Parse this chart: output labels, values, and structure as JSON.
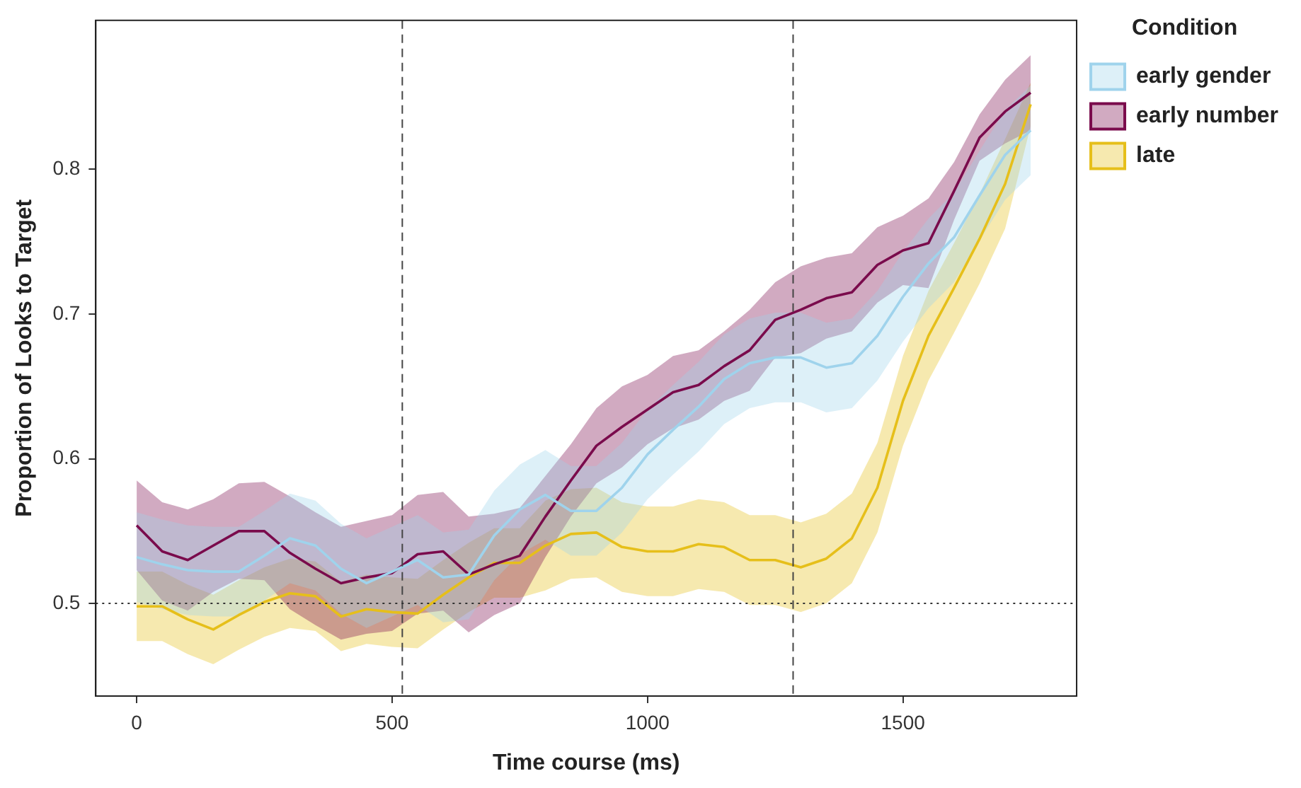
{
  "chart_data": {
    "type": "line",
    "xlabel": "Time course (ms)",
    "ylabel": "Proportion of Looks to Target",
    "legend_title": "Condition",
    "x": [
      0,
      50,
      100,
      150,
      200,
      250,
      300,
      350,
      400,
      450,
      500,
      550,
      600,
      650,
      700,
      750,
      800,
      850,
      900,
      950,
      1000,
      1050,
      1100,
      1150,
      1200,
      1250,
      1300,
      1350,
      1400,
      1450,
      1500,
      1550,
      1600,
      1650,
      1700,
      1750
    ],
    "series": [
      {
        "name": "early gender",
        "color": "#9fd3ec",
        "values": [
          0.532,
          0.527,
          0.523,
          0.522,
          0.522,
          0.533,
          0.545,
          0.54,
          0.524,
          0.514,
          0.522,
          0.53,
          0.518,
          0.52,
          0.547,
          0.565,
          0.575,
          0.564,
          0.564,
          0.58,
          0.603,
          0.62,
          0.636,
          0.655,
          0.666,
          0.67,
          0.67,
          0.663,
          0.666,
          0.685,
          0.712,
          0.735,
          0.753,
          0.782,
          0.81,
          0.827
        ],
        "upper": [
          0.563,
          0.558,
          0.554,
          0.553,
          0.553,
          0.564,
          0.576,
          0.571,
          0.555,
          0.545,
          0.553,
          0.561,
          0.549,
          0.551,
          0.578,
          0.596,
          0.606,
          0.595,
          0.595,
          0.611,
          0.634,
          0.651,
          0.667,
          0.686,
          0.697,
          0.701,
          0.701,
          0.694,
          0.697,
          0.716,
          0.743,
          0.766,
          0.784,
          0.813,
          0.841,
          0.858
        ],
        "lower": [
          0.501,
          0.496,
          0.492,
          0.491,
          0.491,
          0.502,
          0.514,
          0.509,
          0.493,
          0.483,
          0.491,
          0.499,
          0.487,
          0.489,
          0.516,
          0.534,
          0.544,
          0.533,
          0.533,
          0.549,
          0.572,
          0.589,
          0.605,
          0.624,
          0.635,
          0.639,
          0.639,
          0.632,
          0.635,
          0.654,
          0.681,
          0.704,
          0.722,
          0.751,
          0.779,
          0.796
        ]
      },
      {
        "name": "early number",
        "color": "#7a0b4c",
        "values": [
          0.554,
          0.536,
          0.53,
          0.54,
          0.55,
          0.55,
          0.535,
          0.524,
          0.514,
          0.518,
          0.521,
          0.534,
          0.536,
          0.52,
          0.527,
          0.533,
          0.56,
          0.585,
          0.609,
          0.622,
          0.634,
          0.646,
          0.651,
          0.664,
          0.675,
          0.696,
          0.703,
          0.711,
          0.715,
          0.734,
          0.744,
          0.749,
          0.785,
          0.822,
          0.84,
          0.853
        ],
        "upper": [
          0.585,
          0.57,
          0.565,
          0.572,
          0.583,
          0.584,
          0.574,
          0.563,
          0.553,
          0.557,
          0.561,
          0.575,
          0.577,
          0.56,
          0.562,
          0.566,
          0.588,
          0.61,
          0.635,
          0.65,
          0.658,
          0.671,
          0.675,
          0.688,
          0.703,
          0.722,
          0.733,
          0.739,
          0.742,
          0.76,
          0.768,
          0.78,
          0.805,
          0.838,
          0.862,
          0.879
        ],
        "lower": [
          0.523,
          0.502,
          0.495,
          0.508,
          0.517,
          0.516,
          0.496,
          0.485,
          0.475,
          0.479,
          0.481,
          0.493,
          0.495,
          0.48,
          0.492,
          0.5,
          0.532,
          0.56,
          0.583,
          0.594,
          0.61,
          0.621,
          0.627,
          0.64,
          0.647,
          0.67,
          0.673,
          0.683,
          0.688,
          0.708,
          0.72,
          0.718,
          0.765,
          0.806,
          0.818,
          0.827
        ]
      },
      {
        "name": "late",
        "color": "#e6bf1a",
        "values": [
          0.498,
          0.498,
          0.489,
          0.482,
          0.492,
          0.501,
          0.507,
          0.505,
          0.491,
          0.496,
          0.494,
          0.493,
          0.506,
          0.518,
          0.528,
          0.528,
          0.54,
          0.548,
          0.549,
          0.539,
          0.536,
          0.536,
          0.541,
          0.539,
          0.53,
          0.53,
          0.525,
          0.531,
          0.545,
          0.58,
          0.64,
          0.685,
          0.718,
          0.752,
          0.79,
          0.845
        ],
        "upper": [
          0.522,
          0.522,
          0.513,
          0.506,
          0.516,
          0.525,
          0.531,
          0.529,
          0.515,
          0.52,
          0.518,
          0.517,
          0.53,
          0.542,
          0.552,
          0.552,
          0.571,
          0.579,
          0.58,
          0.57,
          0.567,
          0.567,
          0.572,
          0.57,
          0.561,
          0.561,
          0.556,
          0.562,
          0.576,
          0.611,
          0.671,
          0.716,
          0.749,
          0.783,
          0.821,
          0.86
        ],
        "lower": [
          0.474,
          0.474,
          0.465,
          0.458,
          0.468,
          0.477,
          0.483,
          0.481,
          0.467,
          0.472,
          0.47,
          0.469,
          0.482,
          0.494,
          0.504,
          0.504,
          0.509,
          0.517,
          0.518,
          0.508,
          0.505,
          0.505,
          0.51,
          0.508,
          0.499,
          0.499,
          0.494,
          0.5,
          0.514,
          0.549,
          0.609,
          0.654,
          0.687,
          0.721,
          0.759,
          0.83
        ]
      }
    ],
    "xlim": [
      -80,
      1840
    ],
    "xticks": [
      0,
      500,
      1000,
      1500
    ],
    "ylim": [
      0.436,
      0.903
    ],
    "yticks": [
      0.5,
      0.6,
      0.7,
      0.8
    ],
    "ref_lines": [
      {
        "axis": "x",
        "value": 520,
        "line_style": "dashed",
        "color": "#444444"
      },
      {
        "axis": "x",
        "value": 1285,
        "line_style": "dashed",
        "color": "#444444"
      },
      {
        "axis": "y",
        "value": 0.5,
        "line_style": "dotted",
        "color": "#333333"
      }
    ],
    "grid": false,
    "legend": "right",
    "marker": "none",
    "line_style": "solid"
  }
}
